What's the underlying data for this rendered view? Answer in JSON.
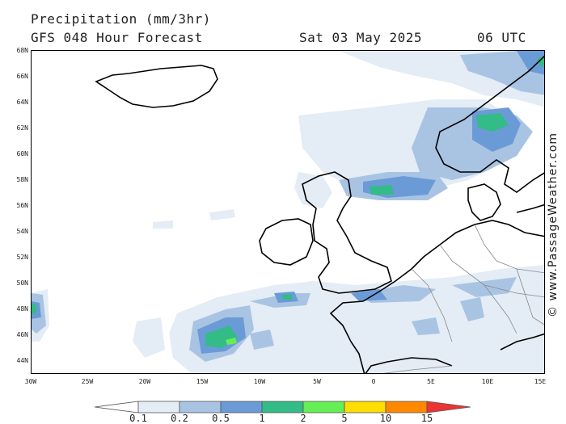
{
  "header": {
    "title": "Precipitation (mm/3hr)",
    "model": "GFS 048 Hour Forecast",
    "date": "Sat 03 May 2025",
    "time": "06 UTC"
  },
  "credit": "© www.PassageWeather.com",
  "latitude_labels": [
    "68N",
    "66N",
    "64N",
    "62N",
    "60N",
    "58N",
    "56N",
    "54N",
    "52N",
    "50N",
    "48N",
    "46N",
    "44N"
  ],
  "longitude_labels": [
    "30W",
    "25W",
    "20W",
    "15W",
    "10W",
    "5W",
    "0",
    "5E",
    "10E",
    "15E"
  ],
  "legend": {
    "labels": [
      "0.1",
      "0.2",
      "0.5",
      "1",
      "2",
      "5",
      "10",
      "15"
    ],
    "colors": [
      "#ffffff",
      "#e4ecf6",
      "#a9c4e3",
      "#6b9bd6",
      "#33bb88",
      "#66ee55",
      "#ffdd00",
      "#ff8800",
      "#ee3333"
    ]
  },
  "colors": {
    "light": "#e4ecf6",
    "pale_blue": "#a9c4e3",
    "blue": "#6b9bd6",
    "teal": "#33bb88",
    "green": "#66ee55"
  }
}
